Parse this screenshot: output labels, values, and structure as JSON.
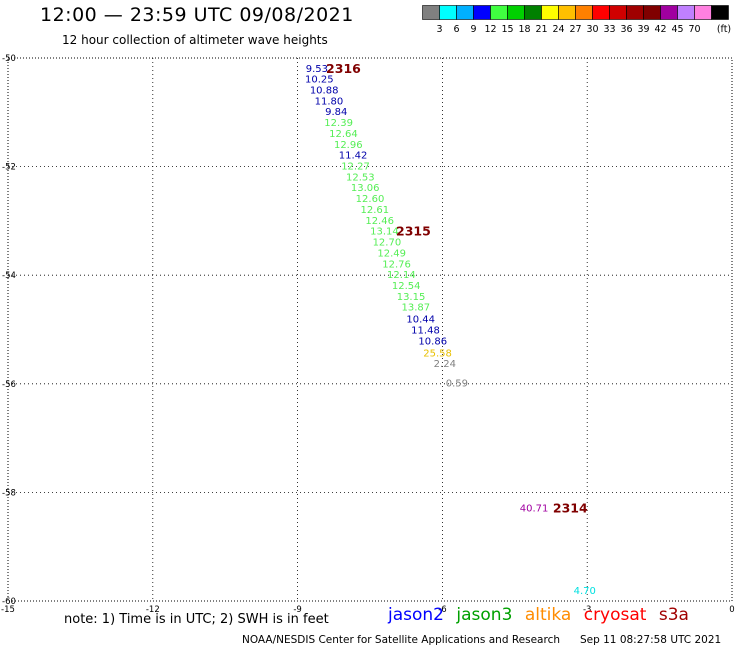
{
  "header": {
    "title": "12:00 — 23:59 UTC 09/08/2021",
    "subtitle": "12 hour collection of altimeter wave heights"
  },
  "colorbar": {
    "colors": [
      "#808080",
      "#00ffff",
      "#00b0ff",
      "#0000ff",
      "#40ff40",
      "#00d000",
      "#008000",
      "#ffff00",
      "#ffc000",
      "#ff8000",
      "#ff0000",
      "#d00000",
      "#a00000",
      "#800000",
      "#a000a0",
      "#c080ff",
      "#ff80e0",
      "#000000"
    ],
    "labels": [
      "3",
      "6",
      "9",
      "12",
      "15",
      "18",
      "21",
      "24",
      "27",
      "30",
      "33",
      "36",
      "39",
      "42",
      "45",
      "70"
    ],
    "unit": "(ft)"
  },
  "footer": {
    "note": "note: 1) Time is in UTC; 2) SWH is in feet",
    "credit": "NOAA/NESDIS Center for Satellite Applications and Research",
    "timestamp": "Sep 11 08:27:58 UTC 2021"
  },
  "legend": [
    {
      "name": "jason2",
      "color": "#0000ff"
    },
    {
      "name": "jason3",
      "color": "#00a000"
    },
    {
      "name": "altika",
      "color": "#ff8c00"
    },
    {
      "name": "cryosat",
      "color": "#ff0000"
    },
    {
      "name": "s3a",
      "color": "#a00000"
    }
  ],
  "chart_data": {
    "type": "scatter",
    "title": "12:00 — 23:59 UTC 09/08/2021",
    "xlim": [
      -15,
      0
    ],
    "ylim": [
      -60,
      -50
    ],
    "xticks": [
      -15,
      -12,
      -9,
      -6,
      -3,
      0
    ],
    "yticks": [
      -50,
      -52,
      -54,
      -56,
      -58,
      -60
    ],
    "xtick_labels": [
      "-15",
      "-12",
      "-9",
      "-6",
      "-3",
      "0"
    ],
    "ytick_labels": [
      "-50",
      "-52",
      "-54",
      "-56",
      "-58",
      "-60"
    ],
    "grid": true,
    "points": [
      {
        "x": -8.6,
        "y": -50.18,
        "label": "9.53",
        "color": "#0000aa"
      },
      {
        "x": -8.55,
        "y": -50.38,
        "label": "10.25",
        "color": "#0000aa"
      },
      {
        "x": -8.45,
        "y": -50.58,
        "label": "10.88",
        "color": "#0000aa"
      },
      {
        "x": -8.35,
        "y": -50.78,
        "label": "11.80",
        "color": "#0000aa"
      },
      {
        "x": -8.2,
        "y": -50.98,
        "label": "9.84",
        "color": "#0000aa"
      },
      {
        "x": -8.15,
        "y": -51.18,
        "label": "12.39",
        "color": "#55ee55"
      },
      {
        "x": -8.05,
        "y": -51.38,
        "label": "12.64",
        "color": "#55ee55"
      },
      {
        "x": -7.95,
        "y": -51.58,
        "label": "12.96",
        "color": "#55ee55"
      },
      {
        "x": -7.85,
        "y": -51.78,
        "label": "11.42",
        "color": "#0000aa"
      },
      {
        "x": -7.8,
        "y": -51.98,
        "label": "12.27",
        "color": "#55ee55"
      },
      {
        "x": -7.7,
        "y": -52.18,
        "label": "12.53",
        "color": "#55ee55"
      },
      {
        "x": -7.6,
        "y": -52.38,
        "label": "13.06",
        "color": "#55ee55"
      },
      {
        "x": -7.5,
        "y": -52.58,
        "label": "12.60",
        "color": "#55ee55"
      },
      {
        "x": -7.4,
        "y": -52.78,
        "label": "12.61",
        "color": "#55ee55"
      },
      {
        "x": -7.3,
        "y": -52.98,
        "label": "12.46",
        "color": "#55ee55"
      },
      {
        "x": -7.2,
        "y": -53.18,
        "label": "13.14",
        "color": "#55ee55"
      },
      {
        "x": -7.15,
        "y": -53.38,
        "label": "12.70",
        "color": "#55ee55"
      },
      {
        "x": -7.05,
        "y": -53.58,
        "label": "12.49",
        "color": "#55ee55"
      },
      {
        "x": -6.95,
        "y": -53.78,
        "label": "12.76",
        "color": "#55ee55"
      },
      {
        "x": -6.85,
        "y": -53.98,
        "label": "12.14",
        "color": "#55ee55"
      },
      {
        "x": -6.75,
        "y": -54.18,
        "label": "12.54",
        "color": "#55ee55"
      },
      {
        "x": -6.65,
        "y": -54.38,
        "label": "13.15",
        "color": "#55ee55"
      },
      {
        "x": -6.55,
        "y": -54.58,
        "label": "13.87",
        "color": "#55ee55"
      },
      {
        "x": -6.45,
        "y": -54.8,
        "label": "10.44",
        "color": "#0000aa"
      },
      {
        "x": -6.35,
        "y": -55.0,
        "label": "11.48",
        "color": "#0000aa"
      },
      {
        "x": -6.2,
        "y": -55.2,
        "label": "10.86",
        "color": "#0000aa"
      },
      {
        "x": -6.1,
        "y": -55.42,
        "label": "25.58",
        "color": "#e8c000"
      },
      {
        "x": -5.95,
        "y": -55.62,
        "label": "2.24",
        "color": "#808080"
      },
      {
        "x": -5.7,
        "y": -55.98,
        "label": "0.59",
        "color": "#808080"
      },
      {
        "x": -4.1,
        "y": -58.28,
        "label": "40.71",
        "color": "#a000a0"
      },
      {
        "x": -3.05,
        "y": -59.8,
        "label": "4.70",
        "color": "#00e0e0"
      }
    ],
    "annotations": [
      {
        "x": -8.05,
        "y": -50.18,
        "text": "2316",
        "color": "#800000"
      },
      {
        "x": -6.6,
        "y": -53.18,
        "text": "2315",
        "color": "#800000"
      },
      {
        "x": -3.35,
        "y": -58.28,
        "text": "2314",
        "color": "#800000"
      }
    ]
  }
}
